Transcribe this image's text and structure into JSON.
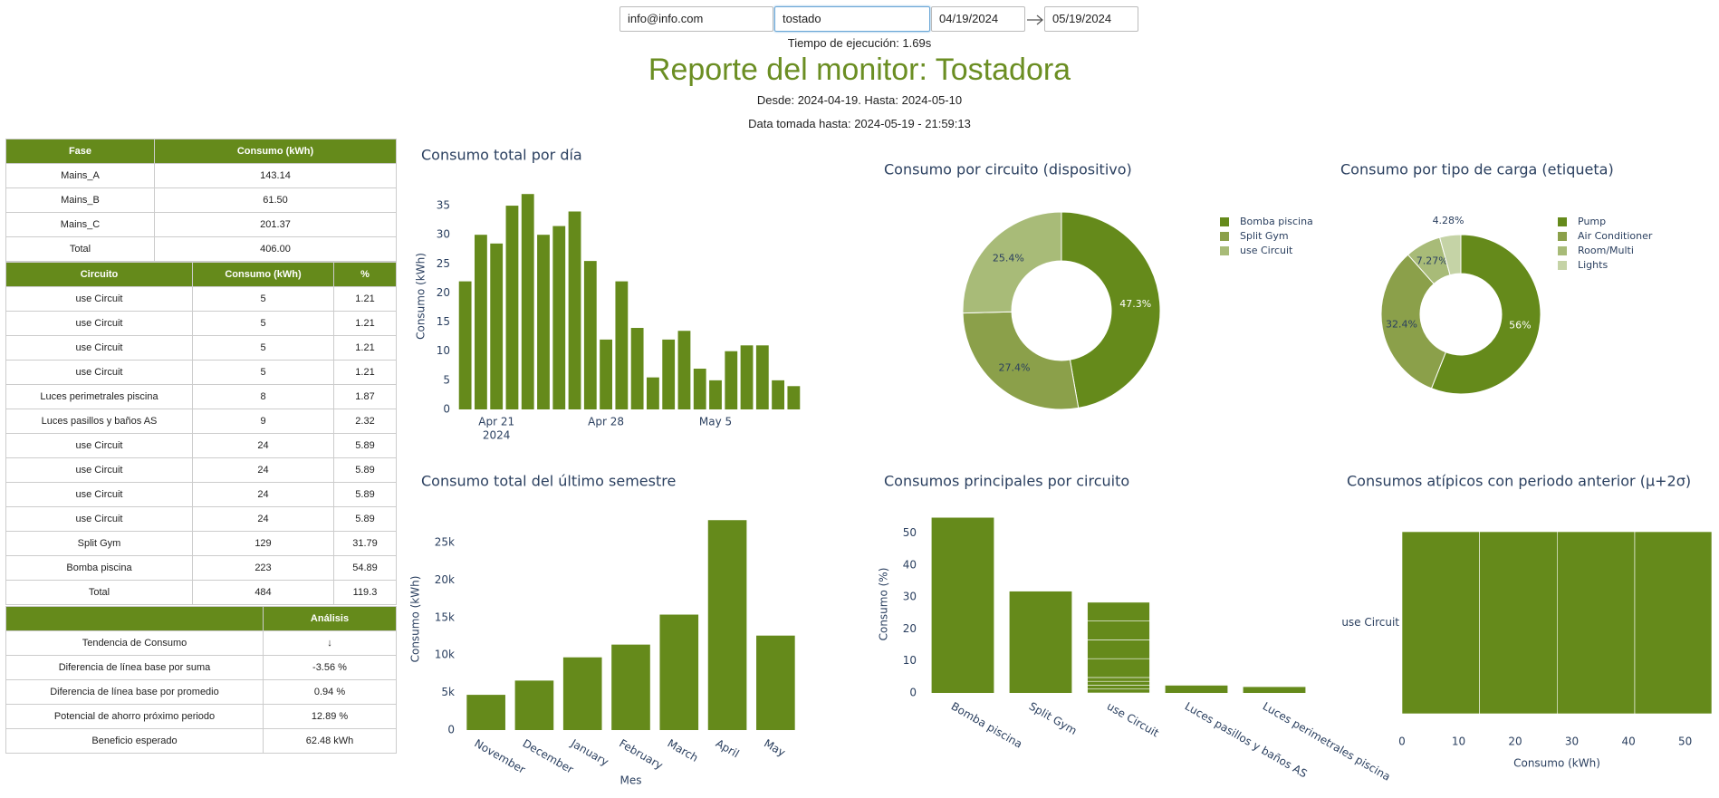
{
  "header": {
    "email": "info@info.com",
    "device": "tostado",
    "date_from": "04/19/2024",
    "date_to": "05/19/2024",
    "execution_time": "Tiempo de ejecución: 1.69s",
    "title": "Reporte del monitor: Tostadora",
    "range": "Desde: 2024-04-19. Hasta: 2024-05-10",
    "data_until": "Data tomada hasta: 2024-05-19 - 21:59:13"
  },
  "tables": [
    {
      "columns": [
        "Fase",
        "Consumo (kWh)"
      ],
      "rows": [
        [
          "Mains_A",
          "143.14"
        ],
        [
          "Mains_B",
          "61.50"
        ],
        [
          "Mains_C",
          "201.37"
        ],
        [
          "Total",
          "406.00"
        ]
      ]
    },
    {
      "columns": [
        "Circuito",
        "Consumo (kWh)",
        "%"
      ],
      "rows": [
        [
          "use Circuit",
          "5",
          "1.21"
        ],
        [
          "use Circuit",
          "5",
          "1.21"
        ],
        [
          "use Circuit",
          "5",
          "1.21"
        ],
        [
          "use Circuit",
          "5",
          "1.21"
        ],
        [
          "Luces perimetrales piscina",
          "8",
          "1.87"
        ],
        [
          "Luces pasillos y baños AS",
          "9",
          "2.32"
        ],
        [
          "use Circuit",
          "24",
          "5.89"
        ],
        [
          "use Circuit",
          "24",
          "5.89"
        ],
        [
          "use Circuit",
          "24",
          "5.89"
        ],
        [
          "use Circuit",
          "24",
          "5.89"
        ],
        [
          "Split Gym",
          "129",
          "31.79"
        ],
        [
          "Bomba piscina",
          "223",
          "54.89"
        ],
        [
          "Total",
          "484",
          "119.3"
        ]
      ]
    },
    {
      "columns": [
        "Análisis"
      ],
      "rows": [
        [
          "Tendencia de Consumo",
          "↓"
        ],
        [
          "Diferencia de línea base por suma",
          "-3.56 %"
        ],
        [
          "Diferencia de línea base por promedio",
          "0.94 %"
        ],
        [
          "Potencial de ahorro próximo periodo",
          "12.89 %"
        ],
        [
          "Beneficio esperado",
          "62.48 kWh"
        ]
      ]
    }
  ],
  "chart_data": [
    {
      "type": "bar",
      "title": "Consumo total por día",
      "ylabel": "Consumo (kWh)",
      "color": "#658a1b",
      "x": [
        "2024-04-19",
        "2024-04-20",
        "2024-04-21",
        "2024-04-22",
        "2024-04-23",
        "2024-04-24",
        "2024-04-25",
        "2024-04-26",
        "2024-04-27",
        "2024-04-28",
        "2024-04-29",
        "2024-04-30",
        "2024-05-01",
        "2024-05-02",
        "2024-05-03",
        "2024-05-04",
        "2024-05-05",
        "2024-05-06",
        "2024-05-07",
        "2024-05-08",
        "2024-05-09",
        "2024-05-10"
      ],
      "values": [
        22,
        30,
        28.5,
        35,
        37,
        30,
        31.5,
        34,
        25.5,
        12,
        22,
        14,
        5.5,
        12,
        13.5,
        7,
        5,
        10,
        11,
        11,
        5,
        4
      ],
      "ylim": [
        0,
        38.9
      ],
      "yticks": [
        0,
        5,
        10,
        15,
        20,
        25,
        30,
        35
      ],
      "xticks": [
        {
          "value": "2024-04-21",
          "label": "Apr 21"
        },
        {
          "value": "2024-04-28",
          "label": "Apr 28"
        },
        {
          "value": "2024-05-05",
          "label": "May 5"
        }
      ],
      "x_year_label": "2024"
    },
    {
      "type": "donut",
      "title": "Consumo por circuito (dispositivo)",
      "categories": [
        "Bomba piscina",
        "Split Gym",
        "use Circuit"
      ],
      "values": [
        47.3,
        27.4,
        25.4
      ],
      "value_labels": [
        "47.3%",
        "27.4%",
        "25.4%"
      ],
      "colors": [
        "#658a1b",
        "#8ba04a",
        "#a8bb78"
      ]
    },
    {
      "type": "donut",
      "title": "Consumo por tipo de carga (etiqueta)",
      "categories": [
        "Pump",
        "Air Conditioner",
        "Room/Multi",
        "Lights"
      ],
      "values": [
        56,
        32.4,
        7.27,
        4.28
      ],
      "value_labels": [
        "56%",
        "32.4%",
        "7.27%",
        "4.28%"
      ],
      "colors": [
        "#658a1b",
        "#8ba04a",
        "#a8bb78",
        "#c5d3a6"
      ]
    },
    {
      "type": "bar",
      "title": "Consumo total del último semestre",
      "xlabel": "Mes",
      "ylabel": "Consumo (kWh)",
      "color": "#658a1b",
      "categories": [
        "November",
        "December",
        "January",
        "February",
        "March",
        "April",
        "May"
      ],
      "values": [
        4700,
        6600,
        9700,
        11400,
        15400,
        28000,
        12600
      ],
      "ylim": [
        0,
        29600
      ],
      "yticks": [
        0,
        {
          "value": 5000,
          "label": "5k"
        },
        {
          "value": 10000,
          "label": "10k"
        },
        {
          "value": 15000,
          "label": "15k"
        },
        {
          "value": 20000,
          "label": "20k"
        },
        {
          "value": 25000,
          "label": "25k"
        }
      ]
    },
    {
      "type": "bar",
      "title": "Consumos principales por circuito",
      "ylabel": "Consumo (%)",
      "color": "#658a1b",
      "categories": [
        "Bomba piscina",
        "Split Gym",
        "use Circuit",
        "Luces pasillos y baños AS",
        "Luces perimetrales piscina"
      ],
      "values": [
        54.89,
        31.79,
        [
          1.21,
          1.21,
          1.21,
          1.21,
          5.89,
          5.89,
          5.89,
          5.89
        ],
        2.32,
        1.87
      ],
      "ylim": [
        0,
        55.6
      ],
      "yticks": [
        0,
        10,
        20,
        30,
        40,
        50
      ]
    },
    {
      "type": "hbar",
      "title": "Consumos atípicos con periodo anterior (μ+2σ)",
      "xlabel": "Consumo (kWh)",
      "color": "#658a1b",
      "categories": [
        "use Circuit"
      ],
      "values": [
        [
          13.7,
          13.7,
          13.7,
          13.6
        ]
      ],
      "xlim": [
        0,
        54.7
      ],
      "xticks": [
        0,
        10,
        20,
        30,
        40,
        50
      ]
    }
  ]
}
